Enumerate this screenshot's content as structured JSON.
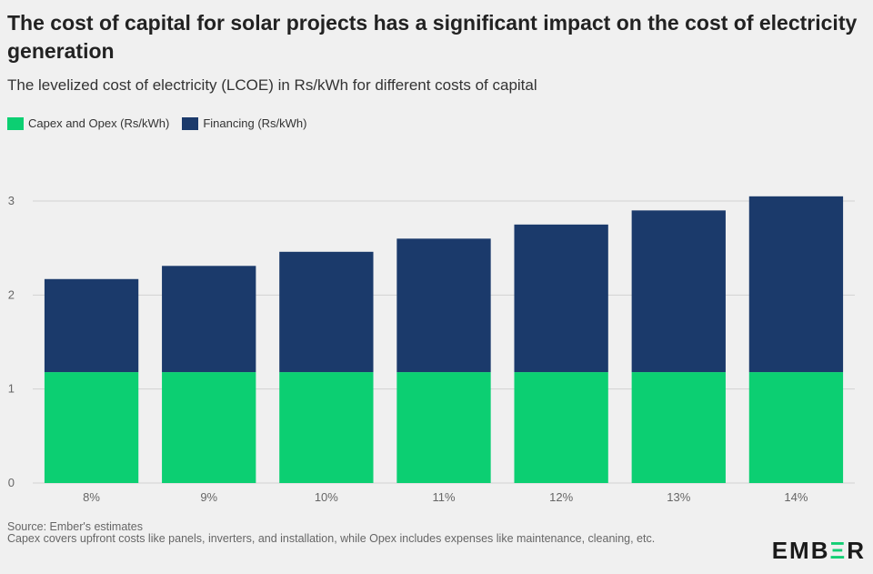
{
  "title": "The cost of capital for solar projects has a significant impact on the cost of electricity generation",
  "subtitle": "The levelized cost of electricity (LCOE) in Rs/kWh for different costs of capital",
  "footer": {
    "source": "Source: Ember's estimates",
    "note": "Capex covers upfront costs like panels, inverters, and installation, while Opex includes expenses like maintenance, cleaning, etc."
  },
  "logo": {
    "prefix": "EMB",
    "accent": "Ξ",
    "suffix": "R"
  },
  "colors": {
    "capex": "#0ccf72",
    "financing": "#1b3a6b",
    "grid": "#d2d2d2",
    "axis_text": "#666666"
  },
  "chart_data": {
    "type": "bar",
    "stacked": true,
    "title": "The cost of capital for solar projects has a significant impact on the cost of electricity generation",
    "subtitle": "The levelized cost of electricity (LCOE) in Rs/kWh for different costs of capital",
    "categories": [
      "8%",
      "9%",
      "10%",
      "11%",
      "12%",
      "13%",
      "14%"
    ],
    "series": [
      {
        "name": "Capex and Opex (Rs/kWh)",
        "values": [
          1.18,
          1.18,
          1.18,
          1.18,
          1.18,
          1.18,
          1.18
        ]
      },
      {
        "name": "Financing (Rs/kWh)",
        "values": [
          0.99,
          1.13,
          1.28,
          1.42,
          1.57,
          1.72,
          1.87
        ]
      }
    ],
    "yticks": [
      "0",
      "1",
      "2",
      "3"
    ],
    "ylim": [
      0,
      3.3
    ],
    "xlabel": "",
    "ylabel": "",
    "grid": true,
    "legend_position": "top-left"
  }
}
